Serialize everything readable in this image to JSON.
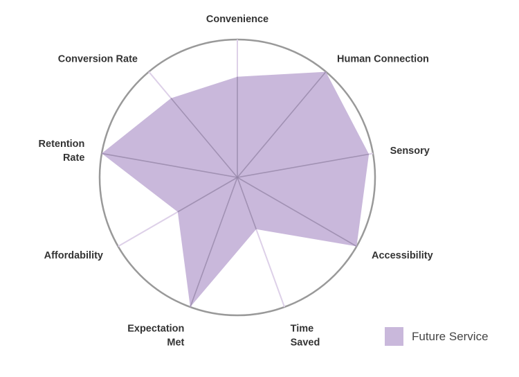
{
  "chart_data": {
    "type": "radar",
    "axes": [
      {
        "lines": [
          "Convenience"
        ]
      },
      {
        "lines": [
          "Human Connection"
        ]
      },
      {
        "lines": [
          "Sensory"
        ]
      },
      {
        "lines": [
          "Accessibility"
        ]
      },
      {
        "lines": [
          "Time",
          "Saved"
        ]
      },
      {
        "lines": [
          "Expectation",
          "Met"
        ]
      },
      {
        "lines": [
          "Affordability"
        ]
      },
      {
        "lines": [
          "Retention",
          "Rate"
        ]
      },
      {
        "lines": [
          "Conversion Rate"
        ]
      }
    ],
    "series": [
      {
        "name": "Future Service",
        "values": [
          0.73,
          1.0,
          0.97,
          1.0,
          0.4,
          1.0,
          0.5,
          1.0,
          0.75
        ]
      }
    ],
    "range": [
      0,
      1
    ],
    "colors": {
      "fill": "#c9b8db",
      "spoke_light": "#ddd0e8",
      "spoke_dark": "#9384a6",
      "circle": "#999999"
    },
    "legend_position": "bottom-right"
  }
}
